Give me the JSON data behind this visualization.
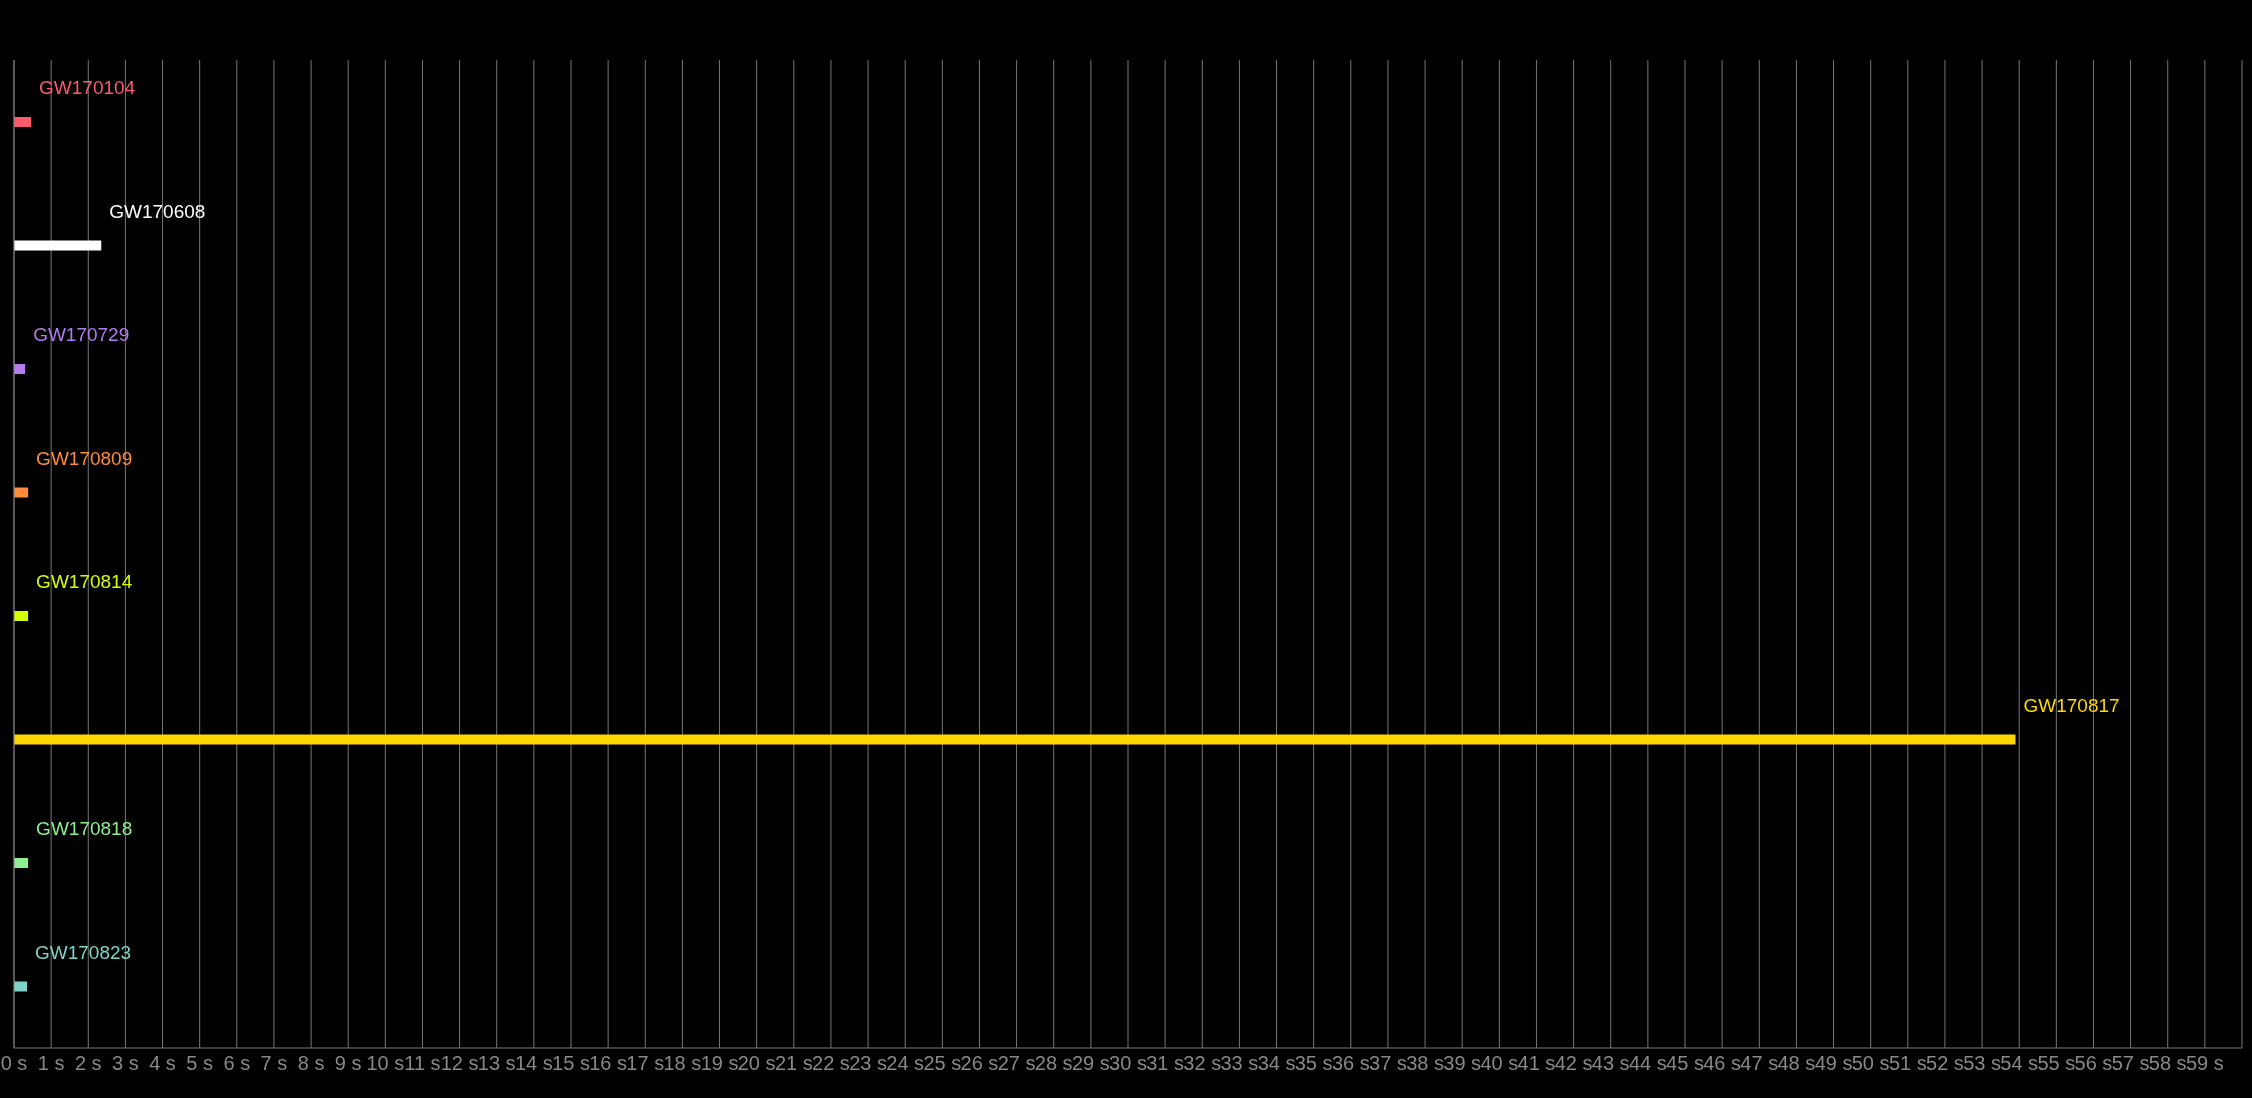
{
  "chart_data": {
    "type": "bar",
    "orientation": "horizontal",
    "categories": [
      "GW170104",
      "GW170608",
      "GW170729",
      "GW170809",
      "GW170814",
      "GW170817",
      "GW170818",
      "GW170823"
    ],
    "values": [
      0.46,
      2.35,
      0.3,
      0.38,
      0.38,
      53.9,
      0.38,
      0.35
    ],
    "colors": [
      "#ff5a6e",
      "#ffffff",
      "#b57bf0",
      "#ff8c3a",
      "#d4ff00",
      "#ffd700",
      "#8ef08e",
      "#7fd4c8"
    ],
    "xlim": [
      0,
      60
    ],
    "xticks": [
      {
        "value": 0,
        "label": "0 s"
      },
      {
        "value": 1,
        "label": "1 s"
      },
      {
        "value": 2,
        "label": "2 s"
      },
      {
        "value": 3,
        "label": "3 s"
      },
      {
        "value": 4,
        "label": "4 s"
      },
      {
        "value": 5,
        "label": "5 s"
      },
      {
        "value": 6,
        "label": "6 s"
      },
      {
        "value": 7,
        "label": "7 s"
      },
      {
        "value": 8,
        "label": "8 s"
      },
      {
        "value": 9,
        "label": "9 s"
      },
      {
        "value": 10,
        "label": "10 s"
      },
      {
        "value": 11,
        "label": "11 s"
      },
      {
        "value": 12,
        "label": "12 s"
      },
      {
        "value": 13,
        "label": "13 s"
      },
      {
        "value": 14,
        "label": "14 s"
      },
      {
        "value": 15,
        "label": "15 s"
      },
      {
        "value": 16,
        "label": "16 s"
      },
      {
        "value": 17,
        "label": "17 s"
      },
      {
        "value": 18,
        "label": "18 s"
      },
      {
        "value": 19,
        "label": "19 s"
      },
      {
        "value": 20,
        "label": "20 s"
      },
      {
        "value": 21,
        "label": "21 s"
      },
      {
        "value": 22,
        "label": "22 s"
      },
      {
        "value": 23,
        "label": "23 s"
      },
      {
        "value": 24,
        "label": "24 s"
      },
      {
        "value": 25,
        "label": "25 s"
      },
      {
        "value": 26,
        "label": "26 s"
      },
      {
        "value": 27,
        "label": "27 s"
      },
      {
        "value": 28,
        "label": "28 s"
      },
      {
        "value": 29,
        "label": "29 s"
      },
      {
        "value": 30,
        "label": "30 s"
      },
      {
        "value": 31,
        "label": "31 s"
      },
      {
        "value": 32,
        "label": "32 s"
      },
      {
        "value": 33,
        "label": "33 s"
      },
      {
        "value": 34,
        "label": "34 s"
      },
      {
        "value": 35,
        "label": "35 s"
      },
      {
        "value": 36,
        "label": "36 s"
      },
      {
        "value": 37,
        "label": "37 s"
      },
      {
        "value": 38,
        "label": "38 s"
      },
      {
        "value": 39,
        "label": "39 s"
      },
      {
        "value": 40,
        "label": "40 s"
      },
      {
        "value": 41,
        "label": "41 s"
      },
      {
        "value": 42,
        "label": "42 s"
      },
      {
        "value": 43,
        "label": "43 s"
      },
      {
        "value": 44,
        "label": "44 s"
      },
      {
        "value": 45,
        "label": "45 s"
      },
      {
        "value": 46,
        "label": "46 s"
      },
      {
        "value": 47,
        "label": "47 s"
      },
      {
        "value": 48,
        "label": "48 s"
      },
      {
        "value": 49,
        "label": "49 s"
      },
      {
        "value": 50,
        "label": "50 s"
      },
      {
        "value": 51,
        "label": "51 s"
      },
      {
        "value": 52,
        "label": "52 s"
      },
      {
        "value": 53,
        "label": "53 s"
      },
      {
        "value": 54,
        "label": "54 s"
      },
      {
        "value": 55,
        "label": "55 s"
      },
      {
        "value": 56,
        "label": "56 s"
      },
      {
        "value": 57,
        "label": "57 s"
      },
      {
        "value": 58,
        "label": "58 s"
      },
      {
        "value": 59,
        "label": "59 s"
      }
    ],
    "grid": "x",
    "tick_labels": "x"
  }
}
